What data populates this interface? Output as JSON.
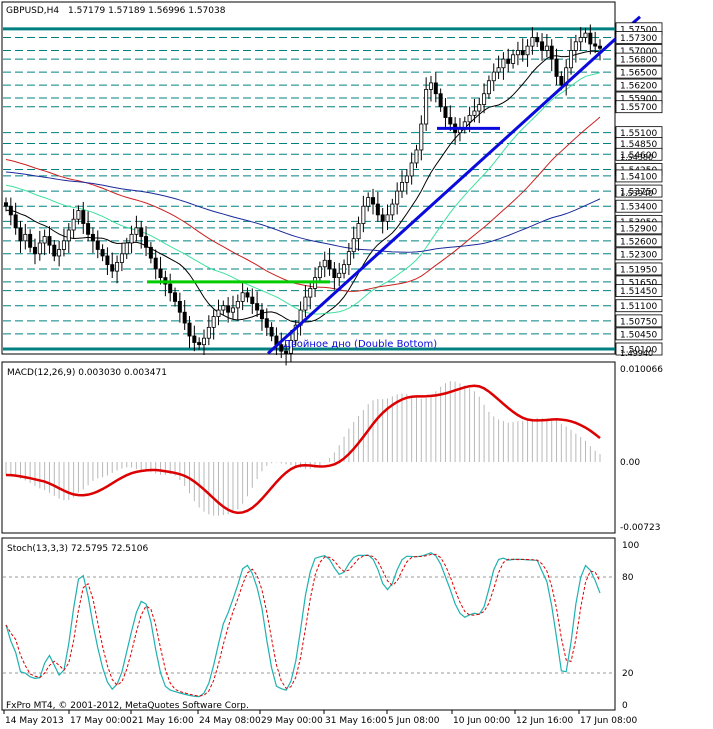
{
  "header": {
    "symbol": "GBPUSD,H4",
    "quote": "1.57179 1.57189 1.56996 1.57038"
  },
  "main_price_labels": [
    "1.57500",
    "1.57300",
    "1.57000",
    "1.56800",
    "1.56500",
    "1.56200",
    "1.55900",
    "1.55700",
    "1.55100",
    "1.54850",
    "1.54600",
    "1.54250",
    "1.54100",
    "1.53750",
    "1.53400",
    "1.53050",
    "1.52900",
    "1.52600",
    "1.52300",
    "1.51950",
    "1.51650",
    "1.51450",
    "1.51100",
    "1.50750",
    "1.50450",
    "1.50100"
  ],
  "small_labels": [
    "1.54380",
    "1.53940",
    "1.49940"
  ],
  "annotation": "Двойное дно (Double Bottom)",
  "macd": {
    "label": "MACD(12,26,9) 0.003030 0.003471",
    "ticks": [
      "0.010066",
      "0.00",
      "-0.00723"
    ]
  },
  "stoch": {
    "label": "Stoch(13,3,3) 72.5795 72.5106",
    "ticks": [
      "100",
      "80",
      "20",
      "0"
    ]
  },
  "copyright": "FxPro MT4, © 2001-2012, MetaQuotes Software Corp.",
  "x_labels": [
    "14 May 2013",
    "17 May 00:00",
    "21 May 16:00",
    "24 May 08:00",
    "29 May 00:00",
    "31 May 16:00",
    "5 Jun 08:00",
    "10 Jun 00:00",
    "12 Jun 16:00",
    "17 Jun 08:00"
  ],
  "colors": {
    "trendline": "#0a0adc",
    "neckline": "#00cc00",
    "level": "#008080",
    "macd_signal": "#dd0000",
    "stoch_main": "#20b0b0",
    "stoch_signal": "#dd0000",
    "ma_fast": "#000000",
    "ma_green": "#40e0a0",
    "ma_red": "#cc2020",
    "ma_blue": "#1a2a9a"
  },
  "chart_data": {
    "type": "candlestick",
    "price_range": [
      1.4994,
      1.577
    ],
    "pivot_lows": [
      {
        "label": "21 May",
        "value": 1.5015
      },
      {
        "label": "29 May",
        "value": 1.4994
      }
    ],
    "neckline_value": 1.5165,
    "trend_channel": {
      "from": 1.4994,
      "to": 1.5775
    },
    "macd_range": [
      -0.00723,
      0.010066
    ],
    "stoch_range": [
      0,
      100
    ]
  }
}
